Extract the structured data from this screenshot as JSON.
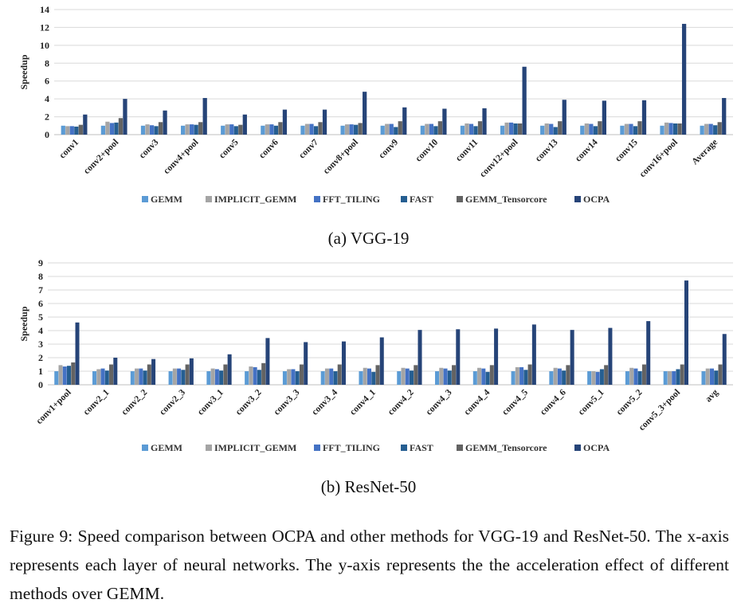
{
  "colors": [
    "#5b9bd5",
    "#a5a5a5",
    "#4472c4",
    "#255e91",
    "#636363",
    "#264478"
  ],
  "chart_data": [
    {
      "type": "bar",
      "title": "",
      "ylabel": "Speedup",
      "xlabel": "",
      "ylim": [
        0,
        14
      ],
      "yticks": [
        0,
        2,
        4,
        6,
        8,
        10,
        12,
        14
      ],
      "grid": true,
      "legend_position": "bottom",
      "categories": [
        "conv1",
        "conv2+pool",
        "conv3",
        "conv4+pool",
        "conv5",
        "conv6",
        "conv7",
        "conv8+pool",
        "conv9",
        "conv10",
        "conv11",
        "conv12+pool",
        "conv13",
        "conv14",
        "conv15",
        "conv16+pool",
        "Average"
      ],
      "series": [
        {
          "name": "GEMM",
          "values": [
            1,
            1,
            1,
            1,
            1,
            1,
            1,
            1,
            1,
            1,
            1,
            1,
            1,
            1,
            1,
            1,
            1
          ]
        },
        {
          "name": "IMPLICIT_GEMM",
          "values": [
            0.95,
            1.45,
            1.15,
            1.15,
            1.15,
            1.15,
            1.2,
            1.15,
            1.2,
            1.2,
            1.25,
            1.35,
            1.25,
            1.25,
            1.2,
            1.35,
            1.2
          ]
        },
        {
          "name": "FFT_TILING",
          "values": [
            0.95,
            1.3,
            1.05,
            1.15,
            1.15,
            1.15,
            1.2,
            1.15,
            1.2,
            1.2,
            1.2,
            1.35,
            1.2,
            1.2,
            1.2,
            1.3,
            1.2
          ]
        },
        {
          "name": "FAST",
          "values": [
            0.9,
            1.35,
            0.95,
            1.1,
            0.95,
            1.0,
            0.95,
            1.1,
            0.85,
            0.95,
            0.95,
            1.25,
            0.85,
            0.95,
            0.95,
            1.25,
            1.05
          ]
        },
        {
          "name": "GEMM_Tensorcore",
          "values": [
            1.1,
            1.85,
            1.4,
            1.4,
            1.1,
            1.4,
            1.4,
            1.3,
            1.5,
            1.5,
            1.5,
            1.25,
            1.5,
            1.5,
            1.5,
            1.25,
            1.4
          ]
        },
        {
          "name": "OCPA",
          "values": [
            2.25,
            4.0,
            2.7,
            4.1,
            2.25,
            2.8,
            2.8,
            4.8,
            3.05,
            2.9,
            2.95,
            7.6,
            3.9,
            3.8,
            3.85,
            12.4,
            4.1
          ]
        }
      ],
      "subcaption": "(a) VGG-19"
    },
    {
      "type": "bar",
      "title": "",
      "ylabel": "Speedup",
      "xlabel": "",
      "ylim": [
        0,
        9
      ],
      "yticks": [
        0,
        1,
        2,
        3,
        4,
        5,
        6,
        7,
        8,
        9
      ],
      "grid": true,
      "legend_position": "bottom",
      "categories": [
        "conv1+pool",
        "conv2_1",
        "conv2_2",
        "conv2_3",
        "conv3_1",
        "conv3_2",
        "conv3_3",
        "conv3_4",
        "conv4_1",
        "conv4_2",
        "conv4_3",
        "conv4_4",
        "conv4_5",
        "conv4_6",
        "conv5_1",
        "conv5_2",
        "conv5_3+pool",
        "avg"
      ],
      "series": [
        {
          "name": "GEMM",
          "values": [
            1,
            1,
            1,
            1,
            1,
            1,
            1,
            1,
            1,
            1,
            1,
            1,
            1,
            1,
            1,
            1,
            1,
            1
          ]
        },
        {
          "name": "IMPLICIT_GEMM",
          "values": [
            1.45,
            1.15,
            1.2,
            1.2,
            1.2,
            1.35,
            1.15,
            1.2,
            1.25,
            1.25,
            1.25,
            1.25,
            1.3,
            1.25,
            1.0,
            1.25,
            1.0,
            1.2
          ]
        },
        {
          "name": "FFT_TILING",
          "values": [
            1.35,
            1.2,
            1.2,
            1.2,
            1.15,
            1.3,
            1.15,
            1.2,
            1.2,
            1.2,
            1.2,
            1.2,
            1.3,
            1.2,
            0.95,
            1.2,
            1.0,
            1.2
          ]
        },
        {
          "name": "FAST",
          "values": [
            1.4,
            1.05,
            1.05,
            1.1,
            1.05,
            1.1,
            1.0,
            1.0,
            0.95,
            1.05,
            1.05,
            0.95,
            1.1,
            1.05,
            1.15,
            1.0,
            1.15,
            1.05
          ]
        },
        {
          "name": "GEMM_Tensorcore",
          "values": [
            1.65,
            1.5,
            1.5,
            1.5,
            1.5,
            1.6,
            1.5,
            1.5,
            1.45,
            1.45,
            1.45,
            1.45,
            1.5,
            1.45,
            1.45,
            1.5,
            1.5,
            1.5
          ]
        },
        {
          "name": "OCPA",
          "values": [
            4.6,
            2.0,
            1.9,
            1.95,
            2.25,
            3.45,
            3.15,
            3.2,
            3.5,
            4.05,
            4.1,
            4.15,
            4.45,
            4.05,
            4.2,
            4.7,
            7.7,
            3.75
          ]
        }
      ],
      "subcaption": "(b) ResNet-50"
    }
  ],
  "caption": "Figure 9: Speed comparison between OCPA and other methods for VGG-19 and ResNet-50. The x-axis represents each layer of neural networks. The y-axis represents the the acceleration effect of different methods over GEMM."
}
